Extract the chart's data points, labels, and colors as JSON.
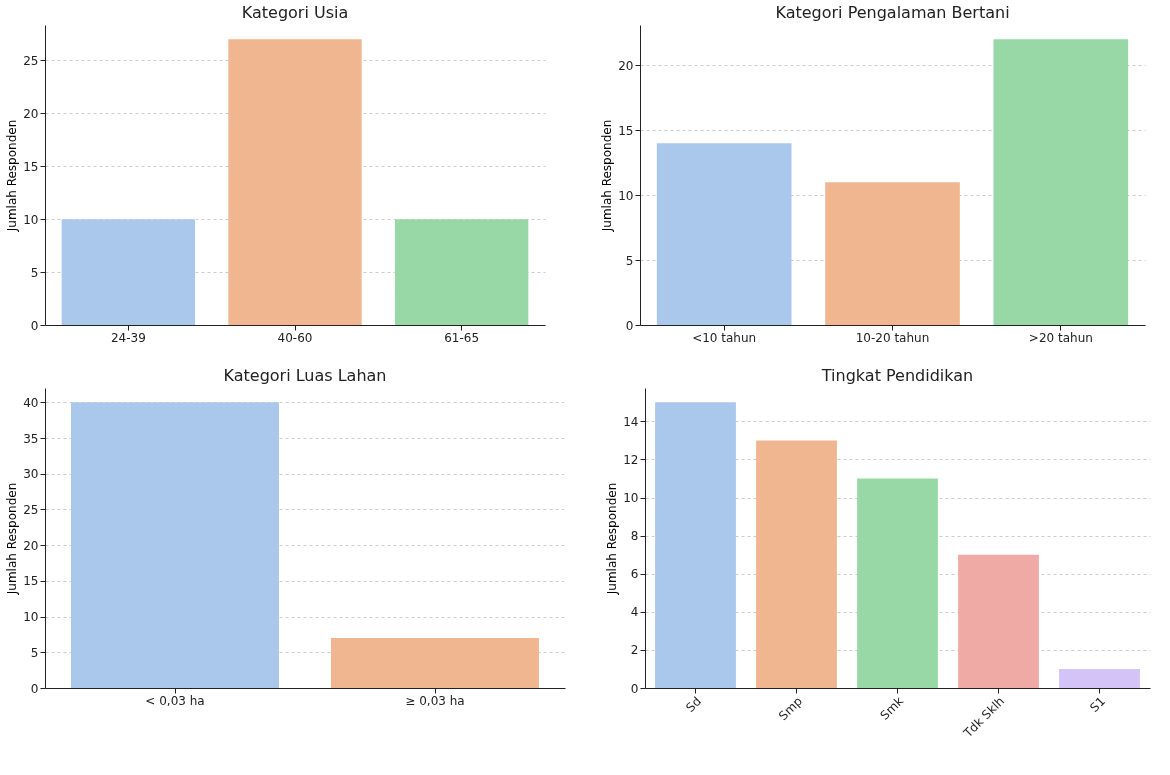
{
  "chart_data": [
    {
      "type": "bar",
      "title": "Kategori Usia",
      "ylabel": "Jumlah Responden",
      "categories": [
        "24-39",
        "40-60",
        "61-65"
      ],
      "values": [
        10,
        27,
        10
      ],
      "colors": [
        "#a9c8ec",
        "#f0b690",
        "#97d8a6"
      ],
      "ylim": [
        0,
        28.35
      ],
      "yticks": [
        0,
        5,
        10,
        15,
        20,
        25
      ],
      "grid": "y"
    },
    {
      "type": "bar",
      "title": "Kategori Pengalaman Bertani",
      "ylabel": "Jumlah Responden",
      "categories": [
        "<10 tahun",
        "10-20 tahun",
        ">20 tahun"
      ],
      "values": [
        14,
        11,
        22
      ],
      "colors": [
        "#a9c8ec",
        "#f0b690",
        "#97d8a6"
      ],
      "ylim": [
        0,
        23.1
      ],
      "yticks": [
        0,
        5,
        10,
        15,
        20
      ],
      "grid": "y"
    },
    {
      "type": "bar",
      "title": "Kategori Luas Lahan",
      "ylabel": "Jumlah Responden",
      "categories": [
        "< 0,03 ha",
        "≥ 0,03 ha"
      ],
      "values": [
        40,
        7
      ],
      "colors": [
        "#a9c8ec",
        "#f0b690"
      ],
      "ylim": [
        0,
        42
      ],
      "yticks": [
        0,
        5,
        10,
        15,
        20,
        25,
        30,
        35,
        40
      ],
      "grid": "y"
    },
    {
      "type": "bar",
      "title": "Tingkat Pendidikan",
      "ylabel": "Jumlah Responden",
      "categories": [
        "Sd",
        "Smp",
        "Smk",
        "Tdk Sklh",
        "S1"
      ],
      "values": [
        15,
        13,
        11,
        7,
        1
      ],
      "colors": [
        "#a9c8ec",
        "#f0b690",
        "#97d8a6",
        "#f0aaa6",
        "#d3c3f6"
      ],
      "ylim": [
        0,
        15.75
      ],
      "yticks": [
        0,
        2,
        4,
        6,
        8,
        10,
        12,
        14
      ],
      "grid": "y"
    }
  ]
}
